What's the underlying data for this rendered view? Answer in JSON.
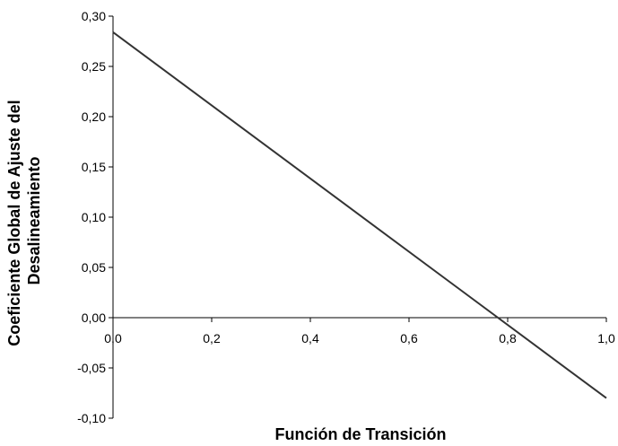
{
  "chart_data": {
    "type": "line",
    "title": "",
    "xlabel": "Función de Transición",
    "ylabel_lines": [
      "Coeficiente Global de Ajuste del",
      "Desalineamiento"
    ],
    "xlim": [
      0.0,
      1.0
    ],
    "ylim": [
      -0.1,
      0.3
    ],
    "x_ticks": [
      0.0,
      0.2,
      0.4,
      0.6,
      0.8,
      1.0
    ],
    "x_tick_labels": [
      "0,0",
      "0,2",
      "0,4",
      "0,6",
      "0,8",
      "1,0"
    ],
    "y_ticks": [
      0.3,
      0.25,
      0.2,
      0.15,
      0.1,
      0.05,
      0.0,
      -0.05,
      -0.1
    ],
    "y_tick_labels": [
      "0,30",
      "0,25",
      "0,20",
      "0,15",
      "0,10",
      "0,05",
      "0,00",
      "-0,05",
      "-0,10"
    ],
    "grid": false,
    "legend": "none",
    "series": [
      {
        "x": [
          0.0,
          1.0
        ],
        "y": [
          0.284,
          -0.08
        ],
        "color": "#333333"
      }
    ]
  }
}
